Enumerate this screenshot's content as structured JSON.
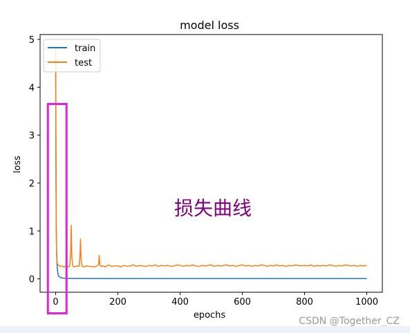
{
  "chart_data": {
    "type": "line",
    "title": "model loss",
    "xlabel": "epochs",
    "ylabel": "loss",
    "xlim": [
      -50,
      1050
    ],
    "ylim": [
      -0.28,
      5.1
    ],
    "x_ticks": [
      0,
      200,
      400,
      600,
      800,
      1000
    ],
    "y_ticks": [
      0,
      1,
      2,
      3,
      4,
      5
    ],
    "grid": false,
    "legend_position": "top-left",
    "series": [
      {
        "name": "train",
        "color": "#1f77b4",
        "x": [
          0,
          1,
          2,
          3,
          4,
          5,
          6,
          8,
          10,
          15,
          20,
          30,
          50,
          100,
          200,
          400,
          600,
          800,
          1000
        ],
        "y": [
          4.3,
          2.2,
          1.0,
          0.55,
          0.36,
          0.25,
          0.17,
          0.09,
          0.05,
          0.03,
          0.02,
          0.01,
          0.008,
          0.006,
          0.005,
          0.005,
          0.005,
          0.005,
          0.005
        ]
      },
      {
        "name": "test",
        "color": "#ff7f0e",
        "x": [
          0,
          1,
          2,
          3,
          4,
          5,
          7,
          10,
          15,
          20,
          25,
          30,
          35,
          40,
          45,
          48,
          50,
          52,
          55,
          60,
          65,
          70,
          75,
          78,
          80,
          82,
          85,
          90,
          100,
          110,
          120,
          130,
          138,
          140,
          142,
          145,
          150,
          160,
          170,
          180,
          190,
          200,
          210,
          220,
          230,
          240,
          250,
          260,
          270,
          280,
          290,
          300,
          310,
          320,
          330,
          340,
          350,
          360,
          370,
          380,
          390,
          400,
          410,
          420,
          430,
          440,
          450,
          460,
          470,
          480,
          490,
          500,
          510,
          520,
          530,
          540,
          550,
          560,
          570,
          580,
          590,
          600,
          610,
          620,
          630,
          640,
          650,
          660,
          670,
          680,
          690,
          700,
          710,
          720,
          730,
          740,
          750,
          760,
          770,
          780,
          790,
          800,
          810,
          820,
          830,
          840,
          850,
          860,
          870,
          880,
          890,
          900,
          910,
          920,
          930,
          940,
          950,
          960,
          970,
          980,
          990,
          1000
        ],
        "y": [
          4.8,
          3.0,
          1.2,
          0.6,
          0.4,
          0.33,
          0.3,
          0.28,
          0.26,
          0.27,
          0.25,
          0.26,
          0.27,
          0.25,
          0.26,
          0.5,
          1.12,
          0.45,
          0.27,
          0.25,
          0.26,
          0.27,
          0.26,
          0.45,
          0.83,
          0.4,
          0.26,
          0.25,
          0.27,
          0.26,
          0.25,
          0.26,
          0.3,
          0.49,
          0.3,
          0.26,
          0.27,
          0.25,
          0.29,
          0.26,
          0.27,
          0.27,
          0.25,
          0.28,
          0.26,
          0.27,
          0.29,
          0.26,
          0.28,
          0.27,
          0.26,
          0.28,
          0.27,
          0.29,
          0.26,
          0.28,
          0.27,
          0.28,
          0.26,
          0.27,
          0.29,
          0.28,
          0.26,
          0.28,
          0.27,
          0.29,
          0.27,
          0.26,
          0.28,
          0.27,
          0.28,
          0.29,
          0.26,
          0.28,
          0.27,
          0.28,
          0.29,
          0.27,
          0.28,
          0.26,
          0.28,
          0.29,
          0.27,
          0.28,
          0.26,
          0.28,
          0.27,
          0.29,
          0.28,
          0.26,
          0.28,
          0.27,
          0.29,
          0.27,
          0.28,
          0.26,
          0.28,
          0.27,
          0.29,
          0.28,
          0.27,
          0.28,
          0.27,
          0.29,
          0.26,
          0.28,
          0.27,
          0.28,
          0.27,
          0.29,
          0.28,
          0.26,
          0.28,
          0.27,
          0.29,
          0.28,
          0.27,
          0.28,
          0.26,
          0.28,
          0.27,
          0.28
        ]
      }
    ]
  },
  "annotation": {
    "text": "损失曲线",
    "color": "#800080",
    "highlight_color": "#e020e0",
    "highlight_x_range": [
      -25,
      35
    ],
    "highlight_y_range": [
      -0.72,
      3.65
    ]
  },
  "watermark": "CSDN @Together_CZ"
}
